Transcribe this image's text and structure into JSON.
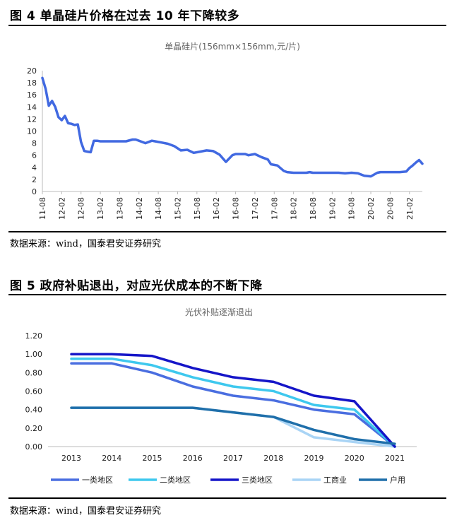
{
  "figure1": {
    "title": "图  4   单晶硅片价格在过去 10 年下降较多",
    "source": "数据来源：wind，国泰君安证券研究"
  },
  "figure2": {
    "title": "图  5  政府补贴退出，对应光伏成本的不断下降",
    "source": "数据来源：wind，国泰君安证券研究"
  },
  "chart_data": [
    {
      "type": "line",
      "title": "单晶硅片(156mm×156mm,元/片)",
      "xlabel": "",
      "ylabel": "",
      "ylim": [
        0,
        20
      ],
      "yticks": [
        "0",
        "2",
        "4",
        "6",
        "8",
        "10",
        "12",
        "14",
        "16",
        "18",
        "20"
      ],
      "xticks": [
        "11-08",
        "12-02",
        "12-08",
        "13-02",
        "13-08",
        "14-02",
        "14-08",
        "15-02",
        "15-08",
        "16-02",
        "16-08",
        "17-02",
        "17-08",
        "18-02",
        "18-08",
        "19-02",
        "19-08",
        "20-02",
        "20-08",
        "21-02"
      ],
      "color": "#4169e1",
      "x": [
        "11-08",
        "11-09",
        "11-10",
        "11-11",
        "11-12",
        "12-01",
        "12-02",
        "12-03",
        "12-04",
        "12-05",
        "12-06",
        "12-07",
        "12-08",
        "12-09",
        "12-10",
        "12-11",
        "12-12",
        "13-01",
        "13-02",
        "13-04",
        "13-06",
        "13-08",
        "13-10",
        "13-12",
        "14-01",
        "14-03",
        "14-04",
        "14-06",
        "14-07",
        "14-09",
        "14-11",
        "15-01",
        "15-03",
        "15-05",
        "15-07",
        "15-09",
        "15-11",
        "16-01",
        "16-03",
        "16-05",
        "16-07",
        "16-08",
        "16-09",
        "16-10",
        "16-11",
        "16-12",
        "17-02",
        "17-04",
        "17-06",
        "17-07",
        "17-08",
        "17-09",
        "17-11",
        "17-12",
        "18-02",
        "18-04",
        "18-06",
        "18-07",
        "18-08",
        "18-10",
        "18-12",
        "19-02",
        "19-04",
        "19-06",
        "19-08",
        "19-10",
        "19-12",
        "20-02",
        "20-04",
        "20-05",
        "20-06",
        "20-07",
        "20-09",
        "20-11",
        "21-01",
        "21-02",
        "21-03",
        "21-04",
        "21-05",
        "21-06"
      ],
      "values": [
        18.8,
        17.0,
        14.2,
        15.0,
        14.0,
        12.3,
        11.8,
        12.5,
        11.3,
        11.2,
        11.0,
        11.1,
        8.2,
        6.7,
        6.6,
        6.5,
        8.4,
        8.4,
        8.3,
        8.3,
        8.3,
        8.3,
        8.3,
        8.6,
        8.6,
        8.2,
        8.0,
        8.4,
        8.3,
        8.1,
        7.9,
        7.5,
        6.8,
        6.9,
        6.4,
        6.6,
        6.8,
        6.7,
        6.1,
        4.9,
        6.0,
        6.2,
        6.2,
        6.2,
        6.2,
        6.0,
        6.2,
        5.7,
        5.3,
        4.5,
        4.4,
        4.3,
        3.4,
        3.2,
        3.1,
        3.1,
        3.1,
        3.2,
        3.1,
        3.1,
        3.1,
        3.1,
        3.1,
        3.0,
        3.1,
        3.0,
        2.6,
        2.5,
        3.1,
        3.2,
        3.2,
        3.2,
        3.2,
        3.2,
        3.3,
        3.9,
        4.3,
        4.8,
        5.2,
        4.6
      ]
    },
    {
      "type": "line",
      "title": "光伏补贴逐渐退出",
      "xlabel": "",
      "ylabel": "",
      "ylim": [
        0,
        1.2
      ],
      "yticks": [
        "0.00",
        "0.20",
        "0.40",
        "0.60",
        "0.80",
        "1.00",
        "1.20"
      ],
      "categories": [
        "2013",
        "2014",
        "2015",
        "2016",
        "2017",
        "2018",
        "2019",
        "2020",
        "2021"
      ],
      "legend_position": "bottom",
      "series": [
        {
          "name": "一类地区",
          "color": "#4a6ee0",
          "values": [
            0.9,
            0.9,
            0.8,
            0.65,
            0.55,
            0.5,
            0.4,
            0.35,
            0.0
          ]
        },
        {
          "name": "二类地区",
          "color": "#3ec8ee",
          "values": [
            0.95,
            0.95,
            0.88,
            0.75,
            0.65,
            0.6,
            0.45,
            0.4,
            0.0
          ]
        },
        {
          "name": "三类地区",
          "color": "#1515c8",
          "values": [
            1.0,
            1.0,
            0.98,
            0.85,
            0.75,
            0.7,
            0.55,
            0.49,
            0.0
          ]
        },
        {
          "name": "工商业",
          "color": "#a9d4f5",
          "values": [
            0.42,
            0.42,
            0.42,
            0.42,
            0.37,
            0.32,
            0.1,
            0.05,
            0.0
          ]
        },
        {
          "name": "户用",
          "color": "#1f6faa",
          "values": [
            0.42,
            0.42,
            0.42,
            0.42,
            0.37,
            0.32,
            0.18,
            0.08,
            0.03
          ]
        }
      ]
    }
  ]
}
